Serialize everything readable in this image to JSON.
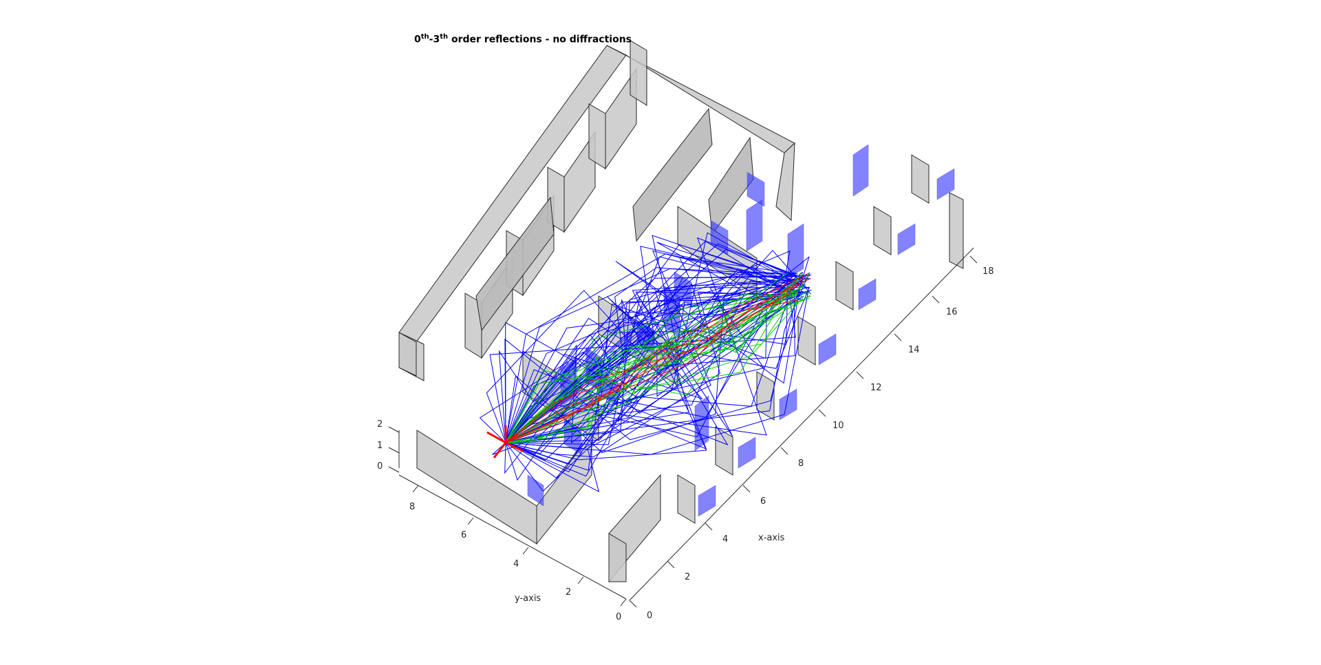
{
  "title": {
    "order_start": "0",
    "order_start_sup": "th",
    "order_end": "3",
    "order_end_sup": "th",
    "suffix": " order reflections - no diffractions"
  },
  "axes": {
    "x_label": "x-axis",
    "y_label": "y-axis",
    "x_ticks": [
      "0",
      "2",
      "4",
      "6",
      "8",
      "10",
      "12",
      "14",
      "16",
      "18"
    ],
    "y_ticks": [
      "0",
      "2",
      "4",
      "6",
      "8"
    ],
    "z_ticks": [
      "0",
      "1",
      "2"
    ]
  },
  "colors": {
    "wall": "#c8c8c8",
    "window": "#3030ff",
    "ray_order1": "#ff0000",
    "ray_order2": "#00cc00",
    "ray_order3": "#0000ff",
    "source": "#ff0000"
  }
}
